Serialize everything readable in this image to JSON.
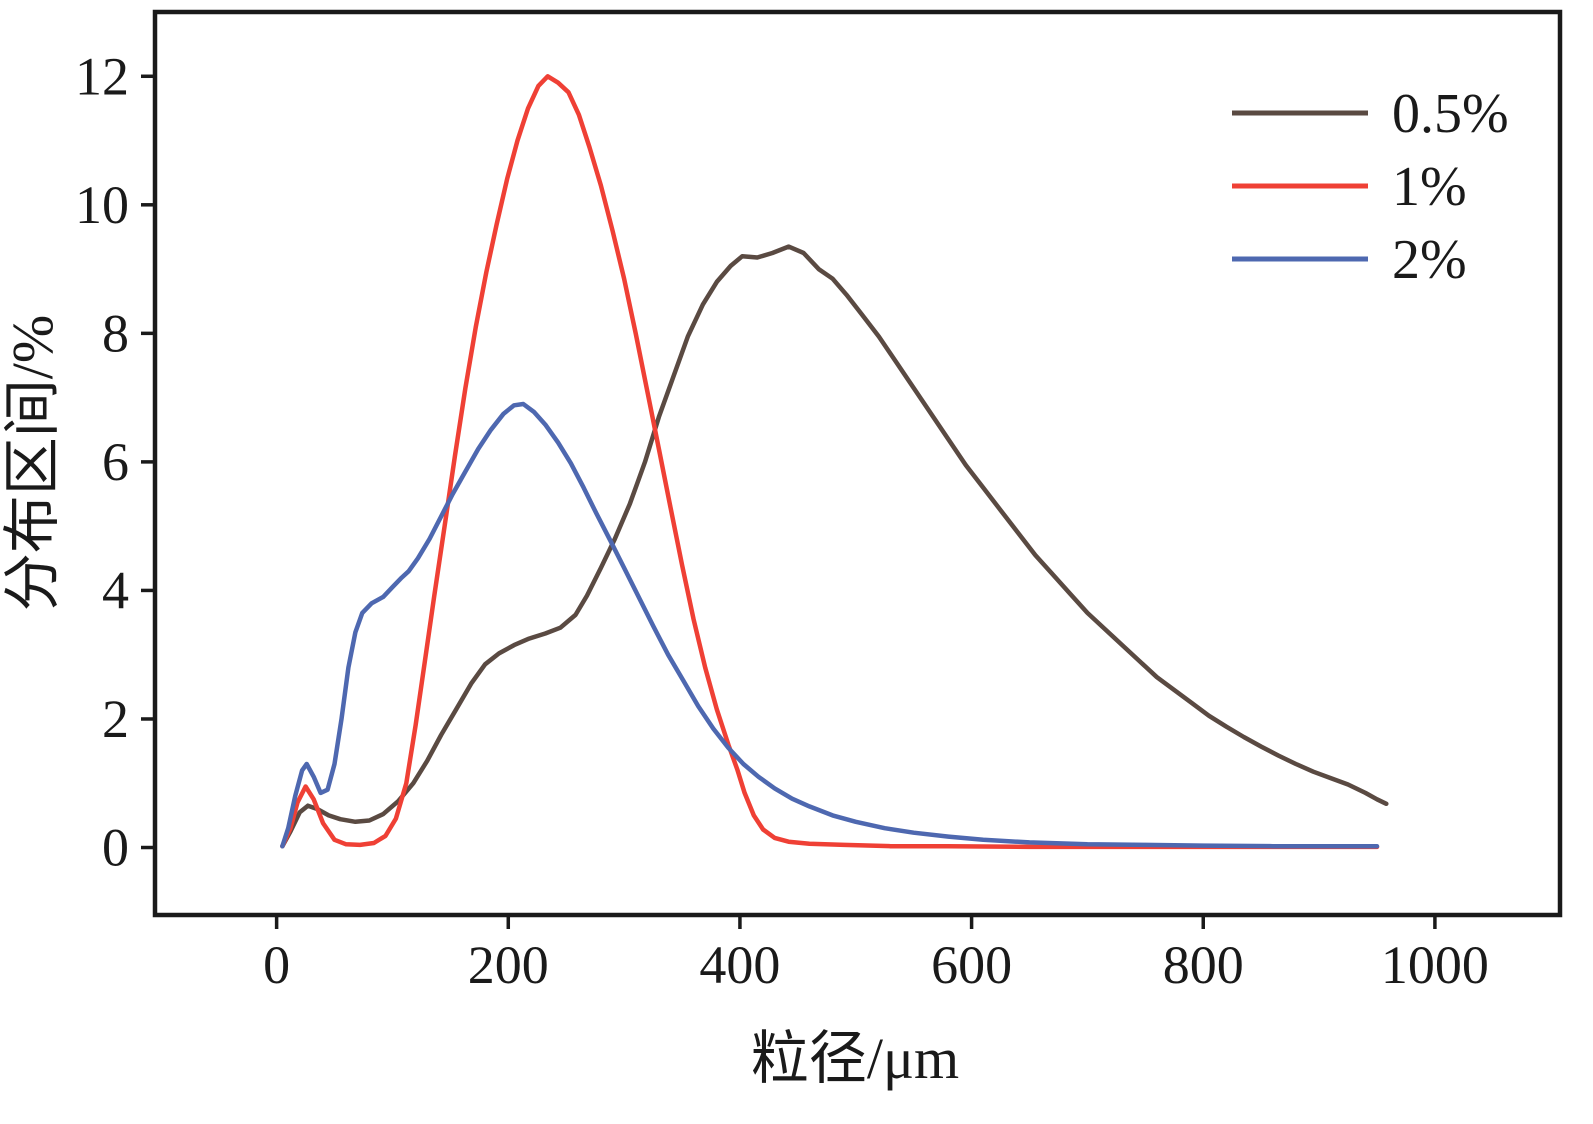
{
  "figure": {
    "background": "#ffffff",
    "axis_color": "#1a1a1a"
  },
  "chart_data": {
    "type": "line",
    "title": "",
    "xlabel": "粒径/μm",
    "ylabel": "分布区间/%",
    "xlim": [
      -105,
      1108
    ],
    "ylim": [
      -1.05,
      13.0
    ],
    "xticks": [
      0,
      200,
      400,
      600,
      800,
      1000
    ],
    "yticks": [
      0,
      2,
      4,
      6,
      8,
      10,
      12
    ],
    "grid": false,
    "legend_position": "top-right",
    "series": [
      {
        "name": "0.5%",
        "color": "#5a4a42",
        "points": [
          [
            5,
            0.02
          ],
          [
            12,
            0.25
          ],
          [
            20,
            0.55
          ],
          [
            27,
            0.65
          ],
          [
            35,
            0.6
          ],
          [
            45,
            0.5
          ],
          [
            55,
            0.44
          ],
          [
            68,
            0.4
          ],
          [
            80,
            0.42
          ],
          [
            92,
            0.52
          ],
          [
            105,
            0.72
          ],
          [
            118,
            1.0
          ],
          [
            130,
            1.35
          ],
          [
            142,
            1.75
          ],
          [
            155,
            2.15
          ],
          [
            168,
            2.55
          ],
          [
            180,
            2.85
          ],
          [
            192,
            3.02
          ],
          [
            205,
            3.15
          ],
          [
            218,
            3.25
          ],
          [
            232,
            3.33
          ],
          [
            245,
            3.42
          ],
          [
            258,
            3.62
          ],
          [
            268,
            3.92
          ],
          [
            280,
            4.35
          ],
          [
            292,
            4.8
          ],
          [
            305,
            5.35
          ],
          [
            318,
            6.0
          ],
          [
            330,
            6.7
          ],
          [
            342,
            7.3
          ],
          [
            355,
            7.95
          ],
          [
            368,
            8.45
          ],
          [
            380,
            8.8
          ],
          [
            392,
            9.05
          ],
          [
            402,
            9.2
          ],
          [
            415,
            9.18
          ],
          [
            428,
            9.25
          ],
          [
            442,
            9.35
          ],
          [
            455,
            9.25
          ],
          [
            468,
            9.0
          ],
          [
            480,
            8.85
          ],
          [
            492,
            8.6
          ],
          [
            505,
            8.3
          ],
          [
            520,
            7.95
          ],
          [
            535,
            7.55
          ],
          [
            550,
            7.15
          ],
          [
            565,
            6.75
          ],
          [
            580,
            6.35
          ],
          [
            595,
            5.95
          ],
          [
            610,
            5.6
          ],
          [
            625,
            5.25
          ],
          [
            640,
            4.9
          ],
          [
            655,
            4.55
          ],
          [
            670,
            4.25
          ],
          [
            685,
            3.95
          ],
          [
            700,
            3.65
          ],
          [
            715,
            3.4
          ],
          [
            730,
            3.15
          ],
          [
            745,
            2.9
          ],
          [
            760,
            2.65
          ],
          [
            775,
            2.45
          ],
          [
            790,
            2.25
          ],
          [
            805,
            2.05
          ],
          [
            820,
            1.88
          ],
          [
            835,
            1.72
          ],
          [
            850,
            1.57
          ],
          [
            865,
            1.43
          ],
          [
            880,
            1.3
          ],
          [
            895,
            1.18
          ],
          [
            910,
            1.08
          ],
          [
            925,
            0.98
          ],
          [
            940,
            0.85
          ],
          [
            950,
            0.75
          ],
          [
            958,
            0.68
          ]
        ]
      },
      {
        "name": "1%",
        "color": "#ef4035",
        "points": [
          [
            5,
            0.02
          ],
          [
            12,
            0.3
          ],
          [
            18,
            0.7
          ],
          [
            25,
            0.95
          ],
          [
            32,
            0.75
          ],
          [
            40,
            0.38
          ],
          [
            50,
            0.12
          ],
          [
            60,
            0.05
          ],
          [
            72,
            0.04
          ],
          [
            84,
            0.07
          ],
          [
            94,
            0.18
          ],
          [
            103,
            0.45
          ],
          [
            112,
            1.0
          ],
          [
            120,
            1.9
          ],
          [
            128,
            2.9
          ],
          [
            136,
            3.9
          ],
          [
            145,
            5.0
          ],
          [
            154,
            6.1
          ],
          [
            163,
            7.15
          ],
          [
            172,
            8.1
          ],
          [
            181,
            8.95
          ],
          [
            190,
            9.7
          ],
          [
            199,
            10.4
          ],
          [
            208,
            11.0
          ],
          [
            217,
            11.5
          ],
          [
            226,
            11.85
          ],
          [
            234,
            12.0
          ],
          [
            243,
            11.9
          ],
          [
            252,
            11.75
          ],
          [
            261,
            11.4
          ],
          [
            270,
            10.9
          ],
          [
            280,
            10.3
          ],
          [
            290,
            9.6
          ],
          [
            300,
            8.85
          ],
          [
            310,
            8.0
          ],
          [
            320,
            7.1
          ],
          [
            330,
            6.2
          ],
          [
            340,
            5.3
          ],
          [
            350,
            4.4
          ],
          [
            360,
            3.55
          ],
          [
            370,
            2.8
          ],
          [
            380,
            2.15
          ],
          [
            390,
            1.6
          ],
          [
            398,
            1.2
          ],
          [
            404,
            0.85
          ],
          [
            412,
            0.5
          ],
          [
            420,
            0.28
          ],
          [
            430,
            0.15
          ],
          [
            442,
            0.09
          ],
          [
            460,
            0.06
          ],
          [
            490,
            0.04
          ],
          [
            530,
            0.02
          ],
          [
            580,
            0.02
          ],
          [
            650,
            0.01
          ],
          [
            750,
            0.01
          ],
          [
            850,
            0.01
          ],
          [
            950,
            0.01
          ]
        ]
      },
      {
        "name": "2%",
        "color": "#4e68b0",
        "points": [
          [
            5,
            0.02
          ],
          [
            10,
            0.3
          ],
          [
            16,
            0.8
          ],
          [
            22,
            1.2
          ],
          [
            26,
            1.3
          ],
          [
            32,
            1.1
          ],
          [
            38,
            0.85
          ],
          [
            44,
            0.9
          ],
          [
            50,
            1.3
          ],
          [
            56,
            2.0
          ],
          [
            62,
            2.8
          ],
          [
            68,
            3.35
          ],
          [
            74,
            3.65
          ],
          [
            82,
            3.8
          ],
          [
            92,
            3.9
          ],
          [
            100,
            4.05
          ],
          [
            108,
            4.2
          ],
          [
            114,
            4.3
          ],
          [
            122,
            4.5
          ],
          [
            132,
            4.8
          ],
          [
            142,
            5.15
          ],
          [
            152,
            5.5
          ],
          [
            163,
            5.85
          ],
          [
            174,
            6.2
          ],
          [
            185,
            6.5
          ],
          [
            196,
            6.75
          ],
          [
            205,
            6.88
          ],
          [
            213,
            6.9
          ],
          [
            222,
            6.78
          ],
          [
            232,
            6.58
          ],
          [
            243,
            6.3
          ],
          [
            254,
            5.98
          ],
          [
            265,
            5.6
          ],
          [
            276,
            5.2
          ],
          [
            288,
            4.78
          ],
          [
            300,
            4.35
          ],
          [
            312,
            3.92
          ],
          [
            325,
            3.45
          ],
          [
            338,
            3.0
          ],
          [
            351,
            2.6
          ],
          [
            364,
            2.2
          ],
          [
            377,
            1.85
          ],
          [
            390,
            1.55
          ],
          [
            403,
            1.3
          ],
          [
            416,
            1.1
          ],
          [
            430,
            0.92
          ],
          [
            445,
            0.76
          ],
          [
            460,
            0.64
          ],
          [
            480,
            0.5
          ],
          [
            500,
            0.4
          ],
          [
            525,
            0.3
          ],
          [
            550,
            0.23
          ],
          [
            580,
            0.17
          ],
          [
            610,
            0.12
          ],
          [
            650,
            0.08
          ],
          [
            700,
            0.05
          ],
          [
            750,
            0.04
          ],
          [
            800,
            0.03
          ],
          [
            860,
            0.02
          ],
          [
            950,
            0.02
          ]
        ]
      }
    ]
  }
}
